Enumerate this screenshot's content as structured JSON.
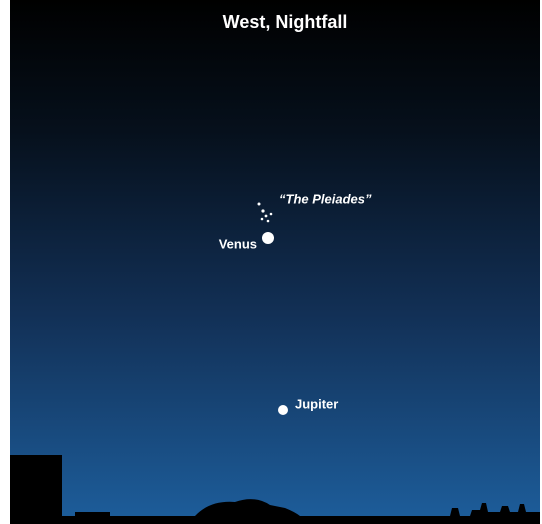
{
  "title": "West, Nightfall",
  "labels": {
    "pleiades": "“The Pleiades”",
    "venus": "Venus",
    "jupiter": "Jupiter"
  }
}
